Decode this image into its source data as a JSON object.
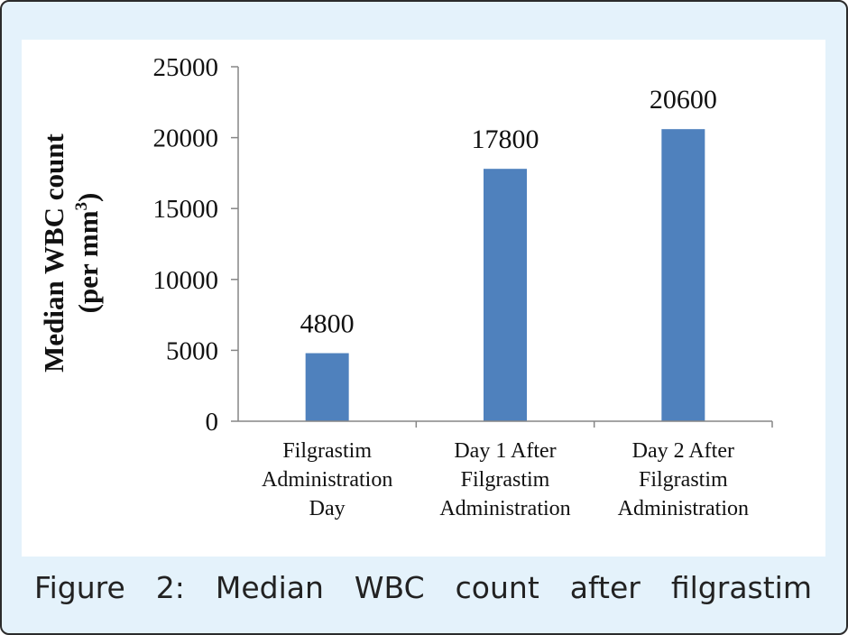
{
  "chart_data": {
    "type": "bar",
    "categories": [
      [
        "Filgrastim",
        "Administration",
        "Day"
      ],
      [
        "Day 1 After",
        "Filgrastim",
        "Administration"
      ],
      [
        "Day 2 After",
        "Filgrastim",
        "Administration"
      ]
    ],
    "values": [
      4800,
      17800,
      20600
    ],
    "data_labels": [
      "4800",
      "17800",
      "20600"
    ],
    "ylabel_lines": [
      "Median WBC count",
      "(per mm",
      "3",
      ")"
    ],
    "yticks": [
      0,
      5000,
      10000,
      15000,
      20000,
      25000
    ],
    "ylim": [
      0,
      25000
    ],
    "bar_color": "#4f81bd",
    "grid": false,
    "legend": "none"
  },
  "caption_words": [
    "Figure",
    "2:",
    "Median",
    "WBC",
    "count",
    "after",
    "filgrastim"
  ]
}
